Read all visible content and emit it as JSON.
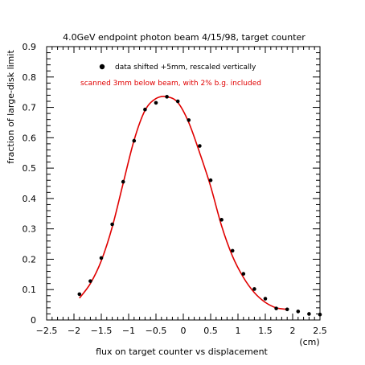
{
  "chart_data": {
    "type": "scatter",
    "title": "4.0GeV endpoint photon beam 4/15/98, target counter",
    "xlabel": "flux on target counter vs displacement",
    "xunit": "(cm)",
    "ylabel": "fraction of large-disk limit",
    "xlim": [
      -2.5,
      2.5
    ],
    "ylim": [
      0,
      0.9
    ],
    "xticks": [
      -2.5,
      -2,
      -1.5,
      -1,
      -0.5,
      0,
      0.5,
      1,
      1.5,
      2,
      2.5
    ],
    "xtick_labels": [
      "−2.5",
      "−2",
      "−1.5",
      "−1",
      "−0.5",
      "0",
      "0.5",
      "1",
      "1.5",
      "2",
      "2.5"
    ],
    "yticks": [
      0,
      0.1,
      0.2,
      0.3,
      0.4,
      0.5,
      0.6,
      0.7,
      0.8,
      0.9
    ],
    "ytick_labels": [
      "0",
      "0.1",
      "0.2",
      "0.3",
      "0.4",
      "0.5",
      "0.6",
      "0.7",
      "0.8",
      "0.9"
    ],
    "grid": false,
    "legend": [
      {
        "label": "data shifted +5mm, rescaled vertically",
        "marker": "dot",
        "color": "#000000"
      },
      {
        "label": "scanned 3mm below beam, with 2% b.g. included",
        "marker": "line",
        "color": "#e00000"
      }
    ],
    "series": [
      {
        "name": "data shifted +5mm, rescaled vertically",
        "type": "scatter",
        "color": "#000000",
        "x": [
          -1.9,
          -1.7,
          -1.5,
          -1.3,
          -1.1,
          -0.9,
          -0.7,
          -0.5,
          -0.3,
          -0.1,
          0.1,
          0.3,
          0.5,
          0.7,
          0.9,
          1.1,
          1.3,
          1.5,
          1.7,
          1.9,
          2.1,
          2.3,
          2.5
        ],
        "y": [
          0.085,
          0.128,
          0.204,
          0.315,
          0.455,
          0.59,
          0.693,
          0.715,
          0.735,
          0.72,
          0.658,
          0.573,
          0.46,
          0.33,
          0.228,
          0.152,
          0.102,
          0.07,
          0.038,
          0.035,
          0.028,
          0.02,
          0.018
        ]
      },
      {
        "name": "scanned 3mm below beam, with 2% b.g. included",
        "type": "line",
        "color": "#e00000",
        "x": [
          -1.9,
          -1.7,
          -1.5,
          -1.3,
          -1.1,
          -0.9,
          -0.7,
          -0.5,
          -0.3,
          -0.1,
          0.1,
          0.3,
          0.5,
          0.7,
          0.9,
          1.1,
          1.3,
          1.5,
          1.7,
          1.9
        ],
        "y": [
          0.072,
          0.12,
          0.195,
          0.306,
          0.45,
          0.592,
          0.69,
          0.729,
          0.735,
          0.716,
          0.65,
          0.55,
          0.44,
          0.31,
          0.21,
          0.14,
          0.09,
          0.058,
          0.04,
          0.035
        ]
      }
    ]
  }
}
